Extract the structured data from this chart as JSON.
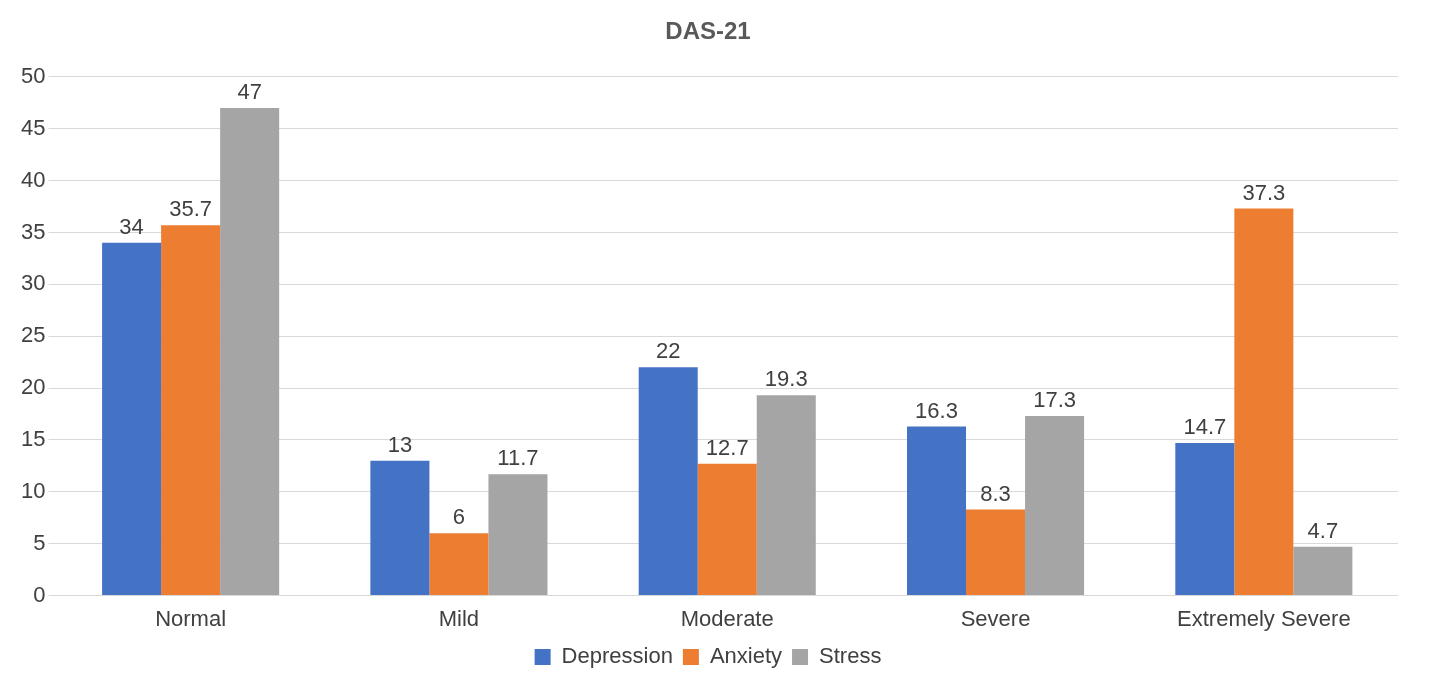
{
  "chart_data": {
    "type": "bar",
    "title": "DAS-21",
    "categories": [
      "Normal",
      "Mild",
      "Moderate",
      "Severe",
      "Extremely Severe"
    ],
    "series": [
      {
        "name": "Depression",
        "color": "#4472c4",
        "values": [
          34,
          13,
          22,
          16.3,
          14.7
        ]
      },
      {
        "name": "Anxiety",
        "color": "#ed7d31",
        "values": [
          35.7,
          6,
          12.7,
          8.3,
          37.3
        ]
      },
      {
        "name": "Stress",
        "color": "#a5a5a5",
        "values": [
          47,
          11.7,
          19.3,
          17.3,
          4.7
        ]
      }
    ],
    "ylim": [
      0,
      50
    ],
    "yticks": [
      0,
      5,
      10,
      15,
      20,
      25,
      30,
      35,
      40,
      45,
      50
    ],
    "grid": "y",
    "legend": "bottom",
    "data_labels": true
  }
}
